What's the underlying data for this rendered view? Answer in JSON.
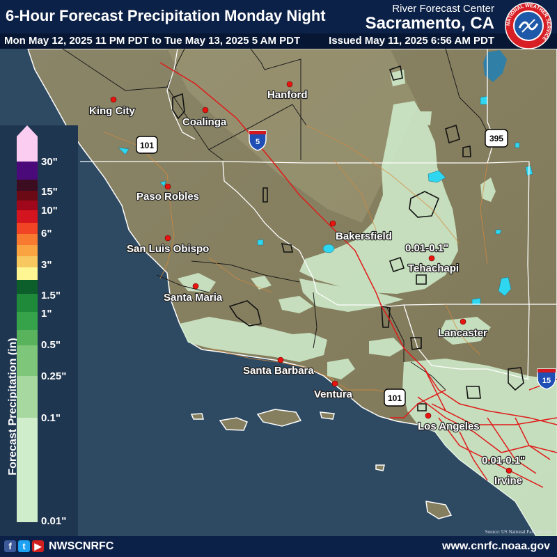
{
  "header": {
    "title": "6-Hour Forecast Precipitation Monday Night",
    "valid_range": "Mon May 12, 2025 11 PM PDT to Tue May 13, 2025 5 AM PDT",
    "agency_line1": "River Forecast Center",
    "agency_line2": "Sacramento, CA",
    "issued": "Issued May 11, 2025 6:56 AM PDT",
    "logo_text": "NATIONAL WEATHER SERVICE"
  },
  "legend": {
    "title": "Forecast Precipitation (in)",
    "labels": [
      "30\"",
      "15\"",
      "10\"",
      "6\"",
      "3\"",
      "1.5\"",
      "1\"",
      "0.5\"",
      "0.25\"",
      "0.1\"",
      "0.01\""
    ],
    "colors": [
      "#fbcdf0",
      "#4b0a7a",
      "#3c0c20",
      "#6b0a14",
      "#a0071a",
      "#d4141e",
      "#f04424",
      "#f87a30",
      "#f9a440",
      "#f7c860",
      "#fdf692",
      "#0c5e2a",
      "#1e8a3a",
      "#36a34a",
      "#59b35d",
      "#7ec67a",
      "#a6d89f",
      "#cfeccb"
    ]
  },
  "cities": [
    {
      "name": "Hanford"
    },
    {
      "name": "King City"
    },
    {
      "name": "Coalinga"
    },
    {
      "name": "Paso Robles"
    },
    {
      "name": "San Luis Obispo"
    },
    {
      "name": "Santa Maria"
    },
    {
      "name": "Bakersfield"
    },
    {
      "name": "Tehachapi"
    },
    {
      "name": "Lancaster"
    },
    {
      "name": "Santa Barbara"
    },
    {
      "name": "Ventura"
    },
    {
      "name": "Los Angeles"
    },
    {
      "name": "Irvine"
    }
  ],
  "highways": [
    {
      "type": "interstate",
      "number": "5"
    },
    {
      "type": "us",
      "number": "101"
    },
    {
      "type": "us",
      "number": "395"
    },
    {
      "type": "us",
      "number": "101"
    },
    {
      "type": "interstate",
      "number": "15"
    }
  ],
  "range_labels": [
    "0.01-0.1\"",
    "0.01-0.1\""
  ],
  "footer": {
    "social_handle": "NWSCNRFC",
    "website": "www.cnrfc.noaa.gov",
    "source": "Source: US National Park Service"
  }
}
